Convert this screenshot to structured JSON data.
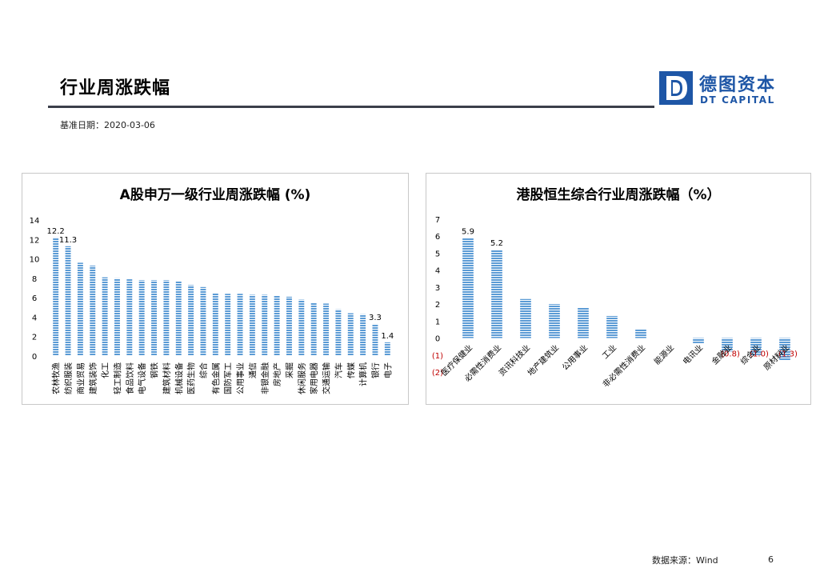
{
  "page": {
    "title": "行业周涨跌幅",
    "base_date": "基准日期：2020-03-06",
    "source": "数据来源：Wind",
    "page_number": "6"
  },
  "logo": {
    "name_cn": "德图资本",
    "name_en": "DT CAPITAL",
    "brand_color": "#1e56a6"
  },
  "colors": {
    "bar": "#5b9bd5",
    "bar_stripe": "#ffffff",
    "negative_label": "#c00000",
    "axis_text": "#000000"
  },
  "chart_data": [
    {
      "type": "bar",
      "title": "A股申万一级行业周涨跌幅 (%)",
      "ylim": [
        0,
        14
      ],
      "yticks": [
        0,
        2,
        4,
        6,
        8,
        10,
        12,
        14
      ],
      "categories": [
        "农林牧渔",
        "纺织服装",
        "商业贸易",
        "建筑装饰",
        "化工",
        "轻工制造",
        "食品饮料",
        "电气设备",
        "钢铁",
        "建筑材料",
        "机械设备",
        "医药生物",
        "综合",
        "有色金属",
        "国防军工",
        "公用事业",
        "通信",
        "非银金融",
        "房地产",
        "采掘",
        "休闲服务",
        "家用电器",
        "交通运输",
        "汽车",
        "传媒",
        "计算机",
        "银行",
        "电子"
      ],
      "values": [
        12.2,
        11.3,
        9.6,
        9.3,
        8.1,
        8.0,
        7.9,
        7.8,
        7.8,
        7.8,
        7.7,
        7.3,
        7.1,
        6.5,
        6.4,
        6.4,
        6.3,
        6.3,
        6.2,
        6.1,
        5.8,
        5.5,
        5.4,
        4.8,
        4.4,
        4.3,
        3.3,
        1.4
      ],
      "data_labels": {
        "0": "12.2",
        "1": "11.3",
        "26": "3.3",
        "27": "1.4"
      }
    },
    {
      "type": "bar",
      "title": "港股恒生综合行业周涨跌幅（%）",
      "ylim": [
        -2,
        7
      ],
      "yticks": [
        7,
        6,
        5,
        4,
        3,
        2,
        1,
        0,
        -1,
        -2
      ],
      "ytick_labels": [
        "7",
        "6",
        "5",
        "4",
        "3",
        "2",
        "1",
        "0",
        "(1)",
        "(2)"
      ],
      "categories": [
        "医疗保健业",
        "必需性消费业",
        "资讯科技业",
        "地产建筑业",
        "公用事业",
        "工业",
        "非必需性消费业",
        "能源业",
        "电讯业",
        "金融业",
        "综合业",
        "原材料业"
      ],
      "values": [
        5.9,
        5.2,
        2.3,
        2.0,
        1.8,
        1.3,
        0.5,
        0.0,
        -0.3,
        -0.8,
        -1.0,
        -1.3
      ],
      "data_labels": {
        "0": "5.9",
        "1": "5.2",
        "9": "(0.8)",
        "10": "(1.0)",
        "11": "(1.3)"
      }
    }
  ]
}
